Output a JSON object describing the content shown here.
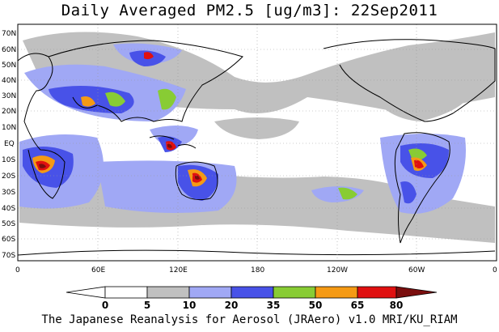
{
  "title": "Daily Averaged PM2.5 [ug/m3]: 22Sep2011",
  "footer": "The Japanese Reanalysis for Aerosol (JRAero) v1.0 MRI/KU_RIAM",
  "lat_labels": [
    "70N",
    "60N",
    "50N",
    "40N",
    "30N",
    "20N",
    "10N",
    "EQ",
    "10S",
    "20S",
    "30S",
    "40S",
    "50S",
    "60S",
    "70S"
  ],
  "lon_labels": [
    "0",
    "60E",
    "120E",
    "180",
    "120W",
    "60W",
    "0"
  ],
  "colorbar": {
    "ticks": [
      "0",
      "5",
      "10",
      "20",
      "35",
      "50",
      "65",
      "80"
    ],
    "colors": [
      "#ffffff",
      "#ffffff",
      "#c0c0c0",
      "#a0a8f5",
      "#4852e8",
      "#88cc34",
      "#f59a14",
      "#e01010",
      "#7a0e0e"
    ]
  }
}
